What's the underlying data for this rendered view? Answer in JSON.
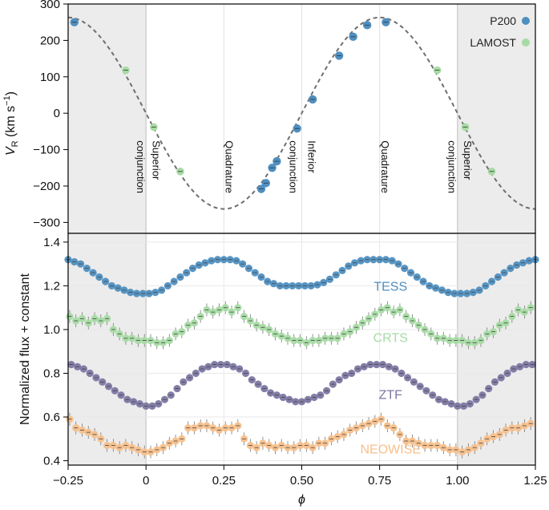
{
  "chart_data": [
    {
      "panel": "top",
      "type": "scatter",
      "ylabel": "V_R (km s^-1)",
      "ylabel_main": "V",
      "ylabel_sub": "R",
      "ylabel_unit": "(km s",
      "ylabel_sup": "−1",
      "ylabel_close": ")",
      "ylim": [
        -330,
        300
      ],
      "xlim": [
        -0.25,
        1.25
      ],
      "yticks": [
        300,
        200,
        100,
        0,
        -100,
        -200,
        -300
      ],
      "ytick_labels": [
        "300",
        "200",
        "100",
        "0",
        "−100",
        "−200",
        "−300"
      ],
      "shaded_regions": [
        [
          -0.25,
          0.0
        ],
        [
          1.0,
          1.25
        ]
      ],
      "vlines": [
        0.0,
        0.25,
        0.5,
        0.75,
        1.0
      ],
      "model_curve": {
        "style": "dashed",
        "amplitude": 263,
        "center": 0,
        "peak_phase": 0.75
      },
      "annotations": [
        {
          "x": -0.02,
          "lines": [
            "conjunction"
          ]
        },
        {
          "x": 0.03,
          "lines": [
            "Superior"
          ]
        },
        {
          "x": 0.265,
          "lines": [
            "Quadrature"
          ]
        },
        {
          "x": 0.47,
          "lines": [
            "conjunction"
          ]
        },
        {
          "x": 0.53,
          "lines": [
            "Inferior"
          ]
        },
        {
          "x": 0.765,
          "lines": [
            "Quadrature"
          ]
        },
        {
          "x": 0.98,
          "lines": [
            "conjunction"
          ]
        },
        {
          "x": 1.03,
          "lines": [
            "Superior"
          ]
        }
      ],
      "legend": {
        "placement": "top-right",
        "entries": [
          {
            "name": "P200",
            "color": "#4f8fc0"
          },
          {
            "name": "LAMOST",
            "color": "#a7dba4"
          }
        ]
      },
      "series": [
        {
          "name": "P200",
          "color": "#4f8fc0",
          "x": [
            -0.23,
            0.37,
            0.385,
            0.405,
            0.42,
            0.485,
            0.535,
            0.62,
            0.665,
            0.71,
            0.77
          ],
          "y": [
            250,
            -208,
            -192,
            -150,
            -132,
            -42,
            38,
            158,
            210,
            242,
            250
          ]
        },
        {
          "name": "LAMOST",
          "color": "#a7dba4",
          "x": [
            -0.065,
            0.025,
            0.11,
            0.935,
            1.025,
            1.11
          ],
          "y": [
            118,
            -38,
            -160,
            118,
            -38,
            -160
          ]
        }
      ]
    },
    {
      "panel": "bottom",
      "type": "scatter",
      "xlabel": "ϕ",
      "ylabel": "Normalized flux + constant",
      "xlim": [
        -0.25,
        1.25
      ],
      "ylim": [
        0.38,
        1.44
      ],
      "xticks": [
        -0.25,
        0,
        0.25,
        0.5,
        0.75,
        1.0,
        1.25
      ],
      "xtick_labels": [
        "−0.25",
        "0",
        "0.25",
        "0.50",
        "0.75",
        "1.00",
        "1.25"
      ],
      "yticks": [
        1.4,
        1.2,
        1.0,
        0.8,
        0.6,
        0.4
      ],
      "ytick_labels": [
        "1.4",
        "1.2",
        "1.0",
        "0.8",
        "0.6",
        "0.4"
      ],
      "shaded_regions": [
        [
          -0.25,
          0.0
        ],
        [
          1.0,
          1.25
        ]
      ],
      "series": [
        {
          "name": "TESS",
          "color": "#4f8fc0",
          "label_x": 0.785,
          "label_y": 1.2,
          "x": [
            -0.25,
            -0.23,
            -0.21,
            -0.19,
            -0.17,
            -0.15,
            -0.13,
            -0.11,
            -0.09,
            -0.07,
            -0.05,
            -0.03,
            -0.01,
            0.01,
            0.03,
            0.05,
            0.07,
            0.09,
            0.11,
            0.13,
            0.15,
            0.17,
            0.19,
            0.21,
            0.23,
            0.25,
            0.27,
            0.29,
            0.31,
            0.33,
            0.35,
            0.37,
            0.39,
            0.41,
            0.43,
            0.45,
            0.47,
            0.49,
            0.51,
            0.53,
            0.55,
            0.57,
            0.59,
            0.61,
            0.63,
            0.65,
            0.67,
            0.69,
            0.71,
            0.73,
            0.75,
            0.77,
            0.79,
            0.81,
            0.83,
            0.85,
            0.87,
            0.89,
            0.91,
            0.93,
            0.95,
            0.97,
            0.99,
            1.01,
            1.03,
            1.05,
            1.07,
            1.09,
            1.11,
            1.13,
            1.15,
            1.17,
            1.19,
            1.21,
            1.23,
            1.25
          ],
          "y": [
            1.32,
            1.31,
            1.3,
            1.28,
            1.26,
            1.24,
            1.22,
            1.2,
            1.19,
            1.18,
            1.17,
            1.165,
            1.165,
            1.165,
            1.17,
            1.18,
            1.2,
            1.22,
            1.24,
            1.26,
            1.28,
            1.295,
            1.305,
            1.315,
            1.32,
            1.32,
            1.32,
            1.315,
            1.3,
            1.28,
            1.26,
            1.24,
            1.22,
            1.21,
            1.2,
            1.2,
            1.2,
            1.2,
            1.2,
            1.2,
            1.205,
            1.215,
            1.23,
            1.25,
            1.27,
            1.29,
            1.305,
            1.315,
            1.32,
            1.32,
            1.32,
            1.32,
            1.315,
            1.3,
            1.28,
            1.26,
            1.24,
            1.22,
            1.2,
            1.19,
            1.18,
            1.17,
            1.165,
            1.165,
            1.165,
            1.17,
            1.18,
            1.2,
            1.22,
            1.24,
            1.26,
            1.28,
            1.295,
            1.305,
            1.315,
            1.32
          ]
        },
        {
          "name": "CRTS",
          "color": "#a7dba4",
          "label_x": 0.785,
          "label_y": 0.965,
          "x": [
            -0.245,
            -0.225,
            -0.205,
            -0.185,
            -0.165,
            -0.145,
            -0.125,
            -0.105,
            -0.085,
            -0.065,
            -0.045,
            -0.025,
            -0.005,
            0.015,
            0.035,
            0.055,
            0.075,
            0.095,
            0.115,
            0.135,
            0.155,
            0.175,
            0.195,
            0.215,
            0.235,
            0.255,
            0.275,
            0.295,
            0.315,
            0.335,
            0.355,
            0.375,
            0.395,
            0.415,
            0.435,
            0.455,
            0.475,
            0.495,
            0.515,
            0.535,
            0.555,
            0.575,
            0.595,
            0.615,
            0.635,
            0.655,
            0.675,
            0.695,
            0.715,
            0.735,
            0.755,
            0.775,
            0.795,
            0.815,
            0.835,
            0.855,
            0.875,
            0.895,
            0.915,
            0.935,
            0.955,
            0.975,
            0.995,
            1.015,
            1.035,
            1.055,
            1.075,
            1.095,
            1.115,
            1.135,
            1.155,
            1.175,
            1.195,
            1.215,
            1.235
          ],
          "y": [
            1.06,
            1.04,
            1.05,
            1.03,
            1.05,
            1.04,
            1.05,
            1.0,
            0.98,
            0.96,
            0.96,
            0.95,
            0.95,
            0.95,
            0.94,
            0.94,
            0.95,
            0.98,
            0.99,
            1.02,
            1.03,
            1.06,
            1.09,
            1.08,
            1.09,
            1.1,
            1.08,
            1.1,
            1.06,
            1.04,
            1.02,
            1.01,
            1.0,
            0.98,
            0.97,
            0.96,
            0.95,
            0.95,
            0.94,
            0.95,
            0.95,
            0.96,
            0.96,
            0.96,
            0.98,
            0.99,
            1.01,
            1.03,
            1.05,
            1.07,
            1.09,
            1.1,
            1.08,
            1.09,
            1.06,
            1.04,
            1.02,
            1.0,
            0.98,
            0.96,
            0.96,
            0.95,
            0.95,
            0.95,
            0.94,
            0.94,
            0.95,
            0.98,
            0.99,
            1.02,
            1.03,
            1.06,
            1.09,
            1.08,
            1.1
          ]
        },
        {
          "name": "ZTF",
          "color": "#7d78a3",
          "label_x": 0.785,
          "label_y": 0.705,
          "x": [
            -0.24,
            -0.22,
            -0.2,
            -0.18,
            -0.16,
            -0.14,
            -0.12,
            -0.1,
            -0.08,
            -0.06,
            -0.04,
            -0.02,
            0.0,
            0.02,
            0.04,
            0.06,
            0.08,
            0.1,
            0.12,
            0.14,
            0.16,
            0.18,
            0.2,
            0.22,
            0.24,
            0.26,
            0.28,
            0.3,
            0.32,
            0.34,
            0.36,
            0.38,
            0.4,
            0.42,
            0.44,
            0.46,
            0.48,
            0.5,
            0.52,
            0.54,
            0.56,
            0.58,
            0.6,
            0.62,
            0.64,
            0.66,
            0.68,
            0.7,
            0.72,
            0.74,
            0.76,
            0.78,
            0.8,
            0.82,
            0.84,
            0.86,
            0.88,
            0.9,
            0.92,
            0.94,
            0.96,
            0.98,
            1.0,
            1.02,
            1.04,
            1.06,
            1.08,
            1.1,
            1.12,
            1.14,
            1.16,
            1.18,
            1.2,
            1.22,
            1.24
          ],
          "y": [
            0.84,
            0.83,
            0.82,
            0.8,
            0.78,
            0.76,
            0.74,
            0.72,
            0.7,
            0.68,
            0.67,
            0.66,
            0.65,
            0.65,
            0.66,
            0.68,
            0.7,
            0.73,
            0.76,
            0.78,
            0.8,
            0.82,
            0.83,
            0.84,
            0.84,
            0.84,
            0.83,
            0.82,
            0.8,
            0.77,
            0.75,
            0.73,
            0.71,
            0.7,
            0.69,
            0.68,
            0.67,
            0.67,
            0.68,
            0.69,
            0.7,
            0.72,
            0.75,
            0.77,
            0.79,
            0.8,
            0.82,
            0.83,
            0.84,
            0.84,
            0.84,
            0.83,
            0.82,
            0.8,
            0.78,
            0.76,
            0.74,
            0.72,
            0.7,
            0.68,
            0.67,
            0.66,
            0.65,
            0.65,
            0.66,
            0.68,
            0.7,
            0.73,
            0.76,
            0.78,
            0.8,
            0.82,
            0.83,
            0.84,
            0.84
          ]
        },
        {
          "name": "NEOWISE",
          "color": "#f7c08c",
          "label_x": 0.785,
          "label_y": 0.455,
          "x": [
            -0.245,
            -0.225,
            -0.205,
            -0.185,
            -0.165,
            -0.145,
            -0.125,
            -0.105,
            -0.085,
            -0.065,
            -0.045,
            -0.025,
            -0.005,
            0.015,
            0.035,
            0.055,
            0.075,
            0.095,
            0.115,
            0.135,
            0.155,
            0.175,
            0.195,
            0.215,
            0.235,
            0.255,
            0.275,
            0.295,
            0.315,
            0.335,
            0.355,
            0.375,
            0.395,
            0.415,
            0.435,
            0.455,
            0.475,
            0.495,
            0.515,
            0.535,
            0.555,
            0.575,
            0.595,
            0.615,
            0.635,
            0.655,
            0.675,
            0.695,
            0.715,
            0.735,
            0.755,
            0.775,
            0.795,
            0.815,
            0.835,
            0.855,
            0.875,
            0.895,
            0.915,
            0.935,
            0.955,
            0.975,
            0.995,
            1.015,
            1.035,
            1.055,
            1.075,
            1.095,
            1.115,
            1.135,
            1.155,
            1.175,
            1.195,
            1.215,
            1.235
          ],
          "y": [
            0.59,
            0.55,
            0.54,
            0.53,
            0.52,
            0.5,
            0.47,
            0.47,
            0.46,
            0.47,
            0.46,
            0.45,
            0.44,
            0.44,
            0.45,
            0.46,
            0.48,
            0.49,
            0.5,
            0.55,
            0.55,
            0.56,
            0.56,
            0.55,
            0.54,
            0.55,
            0.55,
            0.56,
            0.5,
            0.47,
            0.46,
            0.48,
            0.47,
            0.46,
            0.47,
            0.46,
            0.46,
            0.47,
            0.47,
            0.46,
            0.48,
            0.48,
            0.5,
            0.51,
            0.52,
            0.54,
            0.55,
            0.56,
            0.57,
            0.58,
            0.59,
            0.56,
            0.55,
            0.52,
            0.49,
            0.49,
            0.48,
            0.47,
            0.47,
            0.47,
            0.46,
            0.45,
            0.45,
            0.44,
            0.45,
            0.46,
            0.48,
            0.5,
            0.51,
            0.52,
            0.54,
            0.55,
            0.55,
            0.56,
            0.57
          ]
        }
      ]
    }
  ]
}
